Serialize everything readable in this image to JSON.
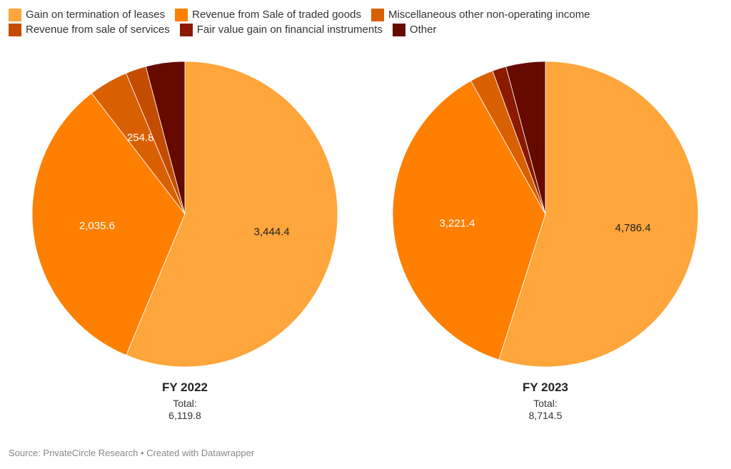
{
  "chart_data": {
    "type": "pie",
    "legend": {
      "placement": "top-left"
    },
    "categories": [
      "Gain on termination of leases",
      "Revenue from Sale of traded goods",
      "Miscellaneous other non-operating income",
      "Revenue from sale of services",
      "Fair value gain on financial instruments",
      "Other"
    ],
    "colors": [
      "#fea53b",
      "#ff7f00",
      "#d96000",
      "#c44c00",
      "#8b1a00",
      "#660a00"
    ],
    "charts": [
      {
        "title": "FY 2022",
        "total_label": "Total:",
        "total": "6,119.8",
        "values": [
          3444.4,
          2035.6,
          254.8,
          133.0,
          0,
          252.0
        ],
        "labels": [
          "3,444.4",
          "2,035.6",
          "254.8",
          "",
          "",
          ""
        ],
        "label_colors": [
          "#222",
          "#fff",
          "#fff",
          "",
          "",
          ""
        ]
      },
      {
        "title": "FY 2023",
        "total_label": "Total:",
        "total": "8,714.5",
        "values": [
          4786.4,
          3221.4,
          216.7,
          0,
          128.0,
          362.0
        ],
        "labels": [
          "4,786.4",
          "3,221.4",
          "",
          "",
          "",
          ""
        ],
        "label_colors": [
          "#222",
          "#fff",
          "",
          "",
          "",
          ""
        ]
      }
    ]
  },
  "source": "Source: PrivateCircle Research • Created with Datawrapper"
}
